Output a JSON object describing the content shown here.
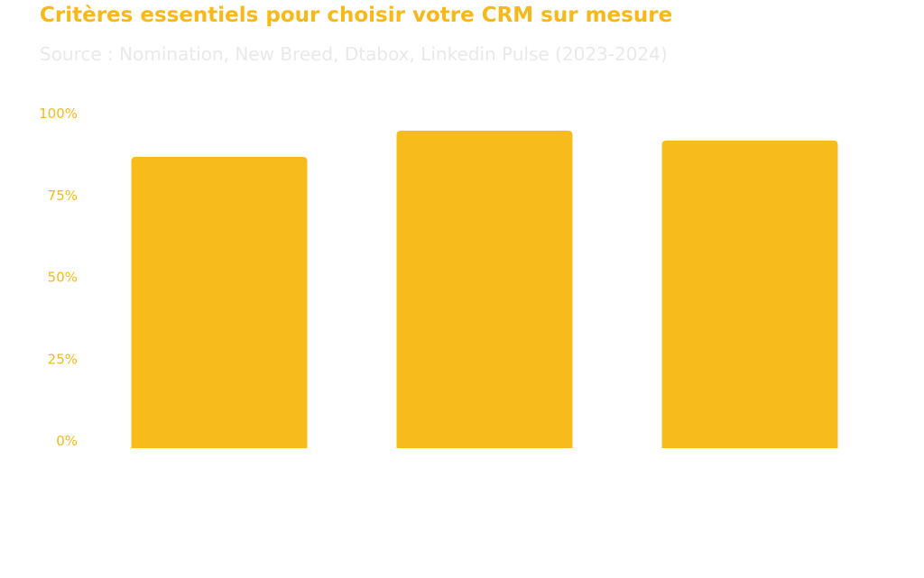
{
  "chart_data": {
    "type": "bar",
    "title": "Critères essentiels pour choisir votre CRM sur mesure",
    "subtitle": "Source : Nomination, New Breed, Dtabox, Linkedin Pulse (2023-2024)",
    "categories": [
      "",
      "",
      ""
    ],
    "values": [
      89,
      97,
      94
    ],
    "ylim": [
      0,
      100
    ],
    "yticks": [
      0,
      25,
      50,
      75,
      100
    ],
    "ytick_labels": [
      "0%",
      "25%",
      "50%",
      "75%",
      "100%"
    ],
    "xlabel": "",
    "ylabel": "",
    "grid": false,
    "legend": "none",
    "colors": {
      "bar": "#f7bb1b",
      "title": "#f6b919",
      "tick_label": "#f6b919",
      "subtitle": "#e9e9e9"
    }
  }
}
